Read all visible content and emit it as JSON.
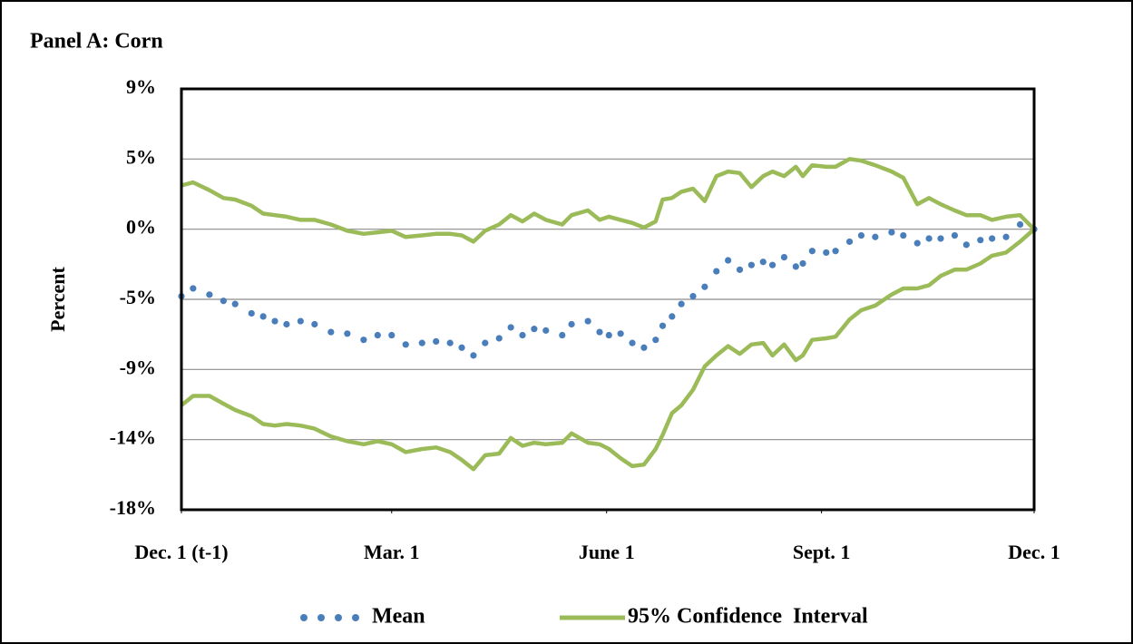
{
  "chart_data": {
    "type": "line",
    "title": "Panel A:  Corn",
    "ylabel": "Percent",
    "xlim": [
      0,
      365
    ],
    "xticks": [
      {
        "value": 0,
        "label": "Dec. 1 (t-1)"
      },
      {
        "value": 90,
        "label": "Mar. 1"
      },
      {
        "value": 182,
        "label": "June 1"
      },
      {
        "value": 274,
        "label": "Sept. 1"
      },
      {
        "value": 365,
        "label": "Dec. 1"
      }
    ],
    "ylim": [
      -18,
      9
    ],
    "yticks": [
      {
        "value": 9,
        "label": "9%"
      },
      {
        "value": 4.5,
        "label": "5%"
      },
      {
        "value": 0,
        "label": "0%"
      },
      {
        "value": -4.5,
        "label": "-5%"
      },
      {
        "value": -9,
        "label": "-9%"
      },
      {
        "value": -13.5,
        "label": "-14%"
      },
      {
        "value": -18,
        "label": "-18%"
      }
    ],
    "grid": true,
    "x": [
      0,
      5,
      12,
      18,
      23,
      30,
      35,
      40,
      45,
      51,
      57,
      64,
      71,
      78,
      84,
      90,
      96,
      103,
      109,
      115,
      120,
      125,
      130,
      136,
      141,
      146,
      151,
      156,
      163,
      167,
      174,
      179,
      183,
      188,
      193,
      198,
      203,
      206,
      210,
      214,
      219,
      224,
      229,
      234,
      239,
      244,
      249,
      253,
      258,
      263,
      266,
      270,
      276,
      280,
      286,
      291,
      297,
      304,
      309,
      315,
      320,
      325,
      331,
      336,
      342,
      347,
      353,
      359,
      365
    ],
    "series": [
      {
        "name": "Mean",
        "color": "#4a7ebb",
        "style": "dots",
        "values": [
          -4.3,
          -3.8,
          -4.2,
          -4.6,
          -4.8,
          -5.4,
          -5.6,
          -5.9,
          -6.1,
          -5.9,
          -6.1,
          -6.6,
          -6.7,
          -7.1,
          -6.8,
          -6.8,
          -7.4,
          -7.3,
          -7.2,
          -7.3,
          -7.6,
          -8.1,
          -7.3,
          -7.0,
          -6.3,
          -6.8,
          -6.4,
          -6.5,
          -6.8,
          -6.1,
          -5.9,
          -6.6,
          -6.8,
          -6.7,
          -7.3,
          -7.6,
          -7.1,
          -6.2,
          -5.6,
          -4.8,
          -4.3,
          -3.7,
          -2.7,
          -2.0,
          -2.6,
          -2.3,
          -2.1,
          -2.3,
          -1.8,
          -2.4,
          -2.2,
          -1.4,
          -1.5,
          -1.4,
          -0.8,
          -0.4,
          -0.5,
          -0.2,
          -0.4,
          -0.9,
          -0.6,
          -0.6,
          -0.4,
          -1.0,
          -0.7,
          -0.6,
          -0.5,
          0.3,
          0
        ]
      },
      {
        "name": "95% Confidence  Interval",
        "color": "#9bbb59",
        "style": "line",
        "values": [
          2.8,
          3.0,
          2.5,
          2.0,
          1.9,
          1.5,
          1.0,
          0.9,
          0.8,
          0.6,
          0.6,
          0.3,
          -0.1,
          -0.3,
          -0.2,
          -0.1,
          -0.5,
          -0.4,
          -0.3,
          -0.3,
          -0.4,
          -0.8,
          -0.1,
          0.3,
          0.9,
          0.5,
          1.0,
          0.6,
          0.3,
          0.9,
          1.2,
          0.6,
          0.8,
          0.6,
          0.4,
          0.1,
          0.5,
          1.9,
          2.0,
          2.4,
          2.6,
          1.8,
          3.4,
          3.7,
          3.6,
          2.7,
          3.4,
          3.7,
          3.4,
          4.0,
          3.4,
          4.1,
          4.0,
          4.0,
          4.5,
          4.4,
          4.1,
          3.7,
          3.3,
          1.6,
          2.0,
          1.6,
          1.2,
          0.9,
          0.9,
          0.6,
          0.8,
          0.9,
          0
        ],
        "lower": [
          -11.3,
          -10.7,
          -10.7,
          -11.2,
          -11.6,
          -12.0,
          -12.5,
          -12.6,
          -12.5,
          -12.6,
          -12.8,
          -13.3,
          -13.6,
          -13.8,
          -13.6,
          -13.8,
          -14.3,
          -14.1,
          -14.0,
          -14.3,
          -14.8,
          -15.4,
          -14.5,
          -14.4,
          -13.4,
          -13.9,
          -13.7,
          -13.8,
          -13.7,
          -13.1,
          -13.7,
          -13.8,
          -14.1,
          -14.7,
          -15.2,
          -15.1,
          -14.1,
          -13.2,
          -11.8,
          -11.3,
          -10.3,
          -8.8,
          -8.1,
          -7.5,
          -8.0,
          -7.4,
          -7.3,
          -8.1,
          -7.4,
          -8.4,
          -8.1,
          -7.1,
          -7.0,
          -6.9,
          -5.8,
          -5.2,
          -4.9,
          -4.2,
          -3.8,
          -3.8,
          -3.6,
          -3.0,
          -2.6,
          -2.6,
          -2.2,
          -1.7,
          -1.5,
          -0.8,
          0
        ]
      }
    ]
  }
}
